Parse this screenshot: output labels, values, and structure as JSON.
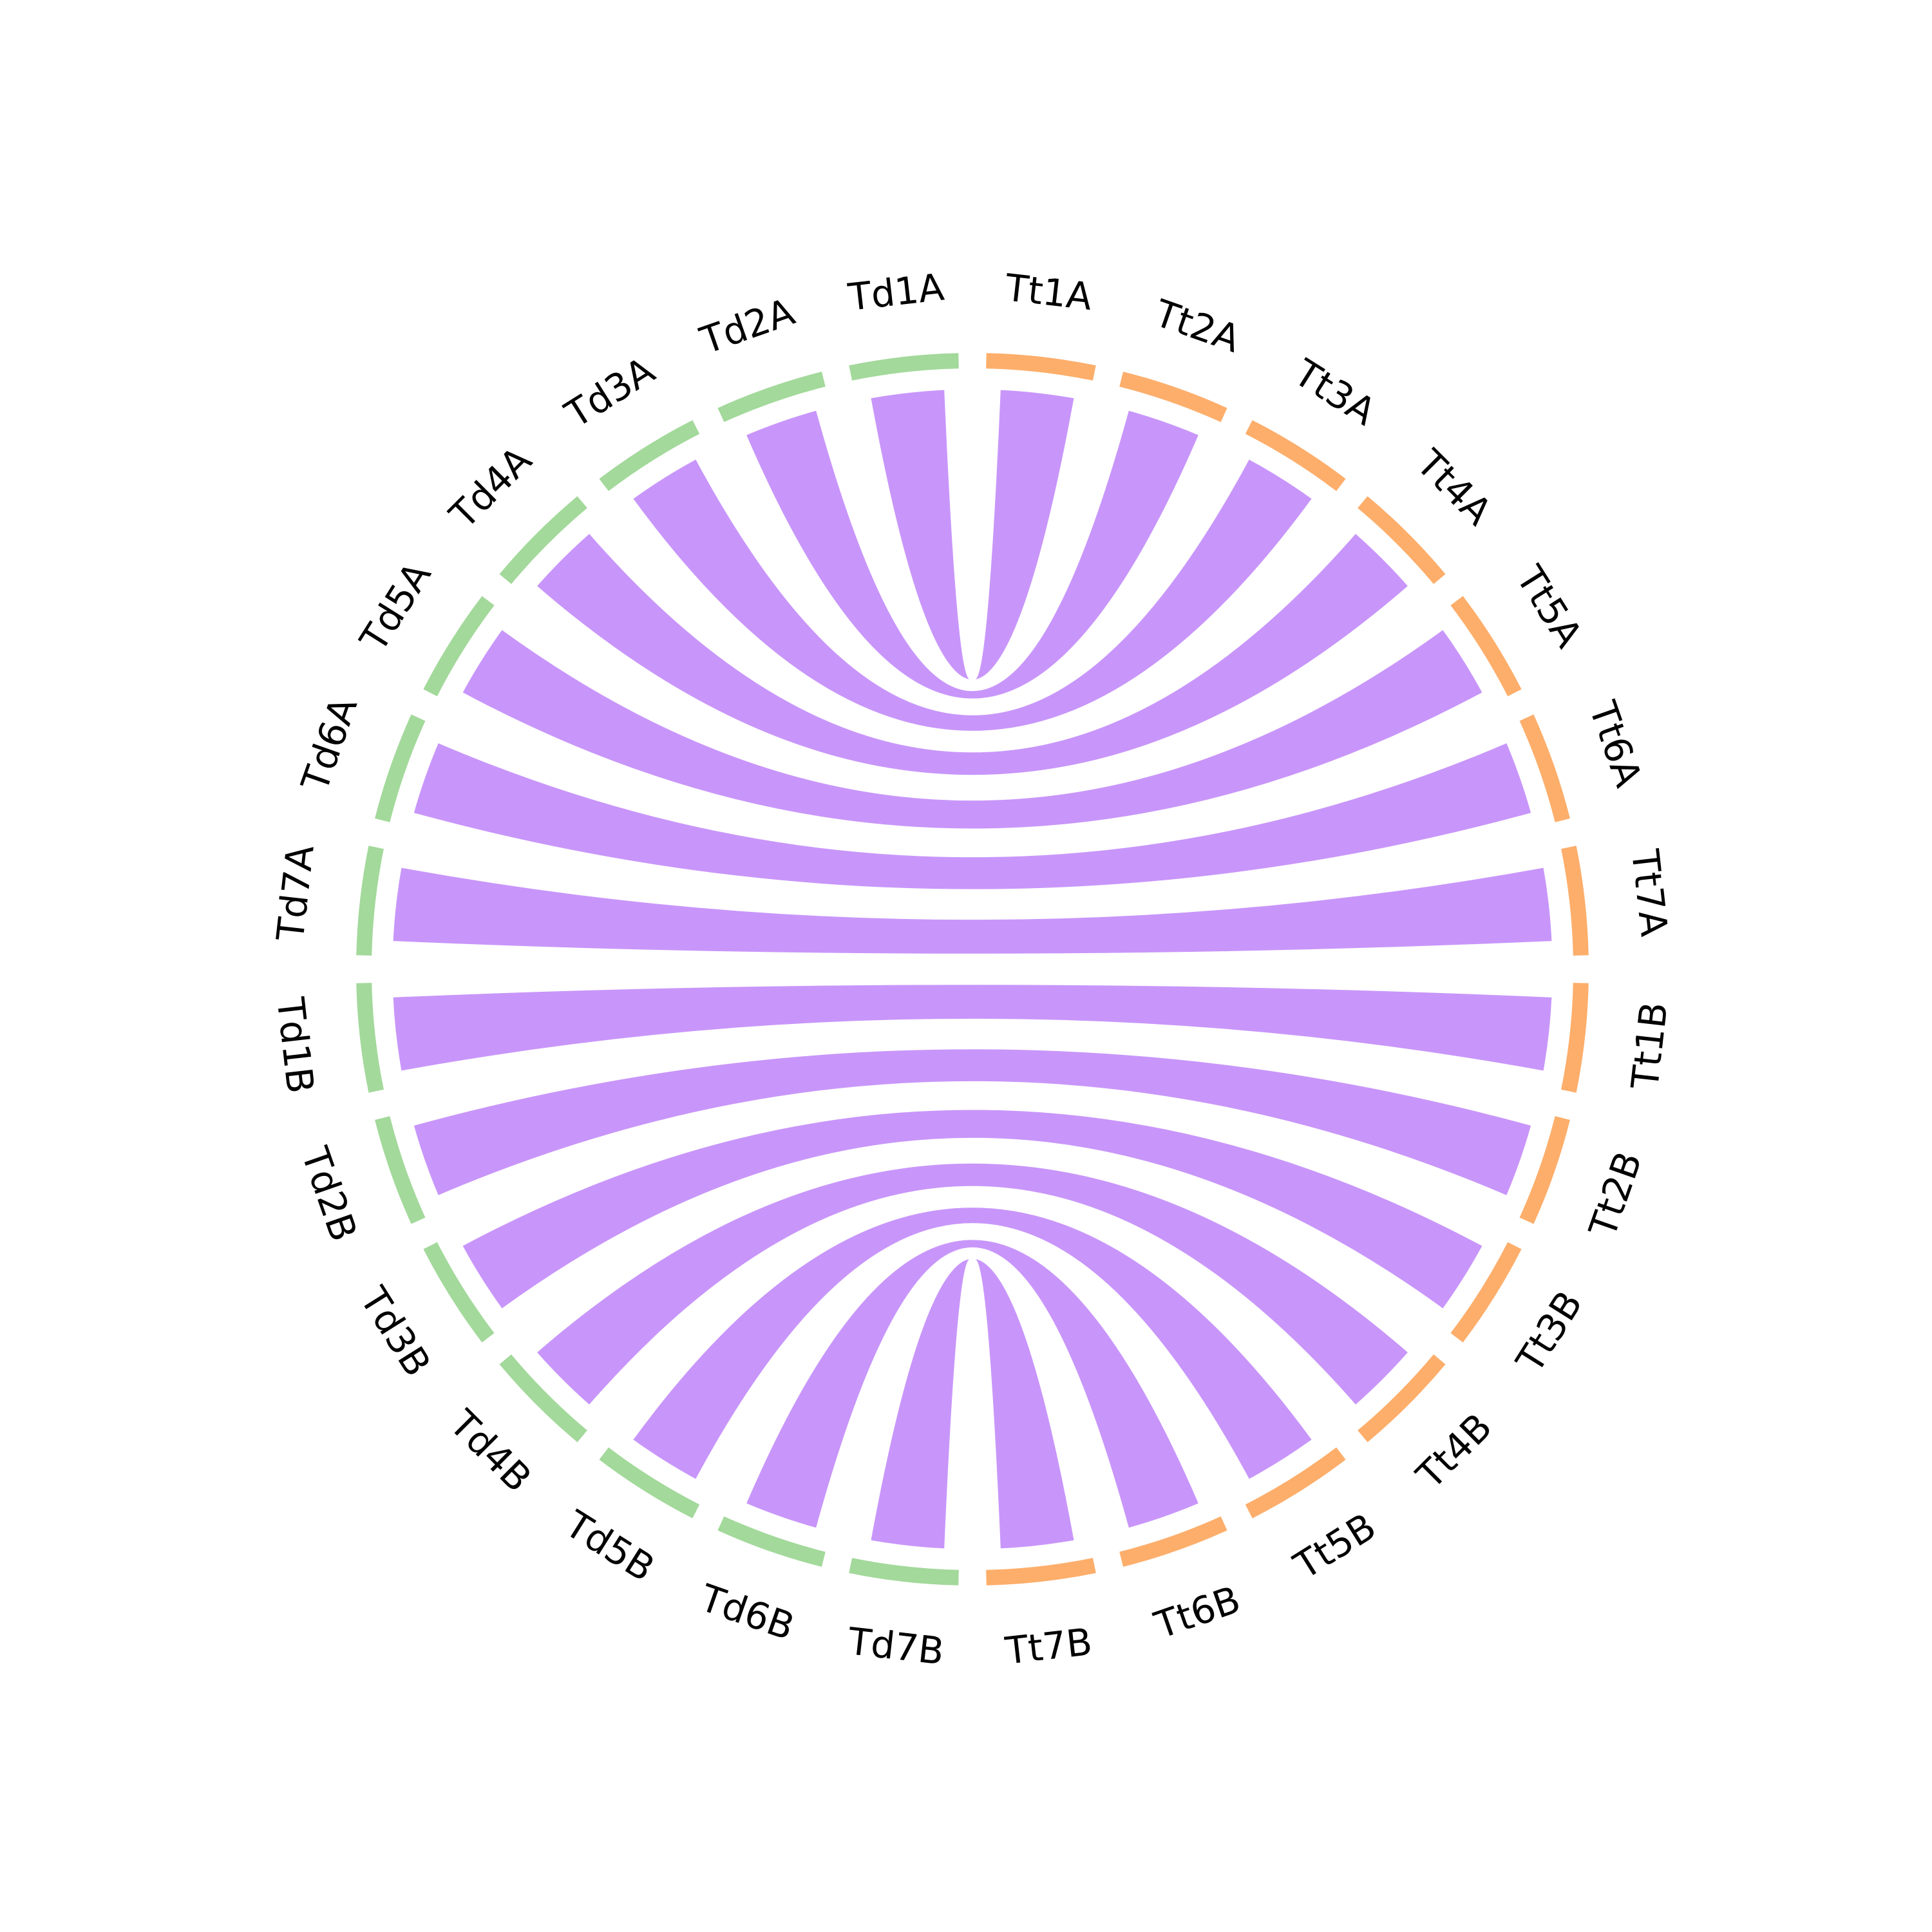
{
  "colors": {
    "background": "#ffffff",
    "td_group": "#a3d99b",
    "tt_group": "#fdae6b",
    "link": "#c896fa",
    "label": "#000000"
  },
  "chart_data": {
    "type": "chord",
    "title": "",
    "groups": [
      {
        "name": "Td",
        "color": "#a3d99b",
        "chromosomes": [
          "Td1A",
          "Td2A",
          "Td3A",
          "Td4A",
          "Td5A",
          "Td6A",
          "Td7A",
          "Td1B",
          "Td2B",
          "Td3B",
          "Td4B",
          "Td5B",
          "Td6B",
          "Td7B"
        ]
      },
      {
        "name": "Tt",
        "color": "#fdae6b",
        "chromosomes": [
          "Tt1A",
          "Tt2A",
          "Tt3A",
          "Tt4A",
          "Tt5A",
          "Tt6A",
          "Tt7A",
          "Tt1B",
          "Tt2B",
          "Tt3B",
          "Tt4B",
          "Tt5B",
          "Tt6B",
          "Tt7B"
        ]
      }
    ],
    "links": [
      {
        "from": "Td1A",
        "to": "Tt1A"
      },
      {
        "from": "Td2A",
        "to": "Tt2A"
      },
      {
        "from": "Td3A",
        "to": "Tt3A"
      },
      {
        "from": "Td4A",
        "to": "Tt4A"
      },
      {
        "from": "Td5A",
        "to": "Tt5A"
      },
      {
        "from": "Td6A",
        "to": "Tt6A"
      },
      {
        "from": "Td7A",
        "to": "Tt7A"
      },
      {
        "from": "Td1B",
        "to": "Tt1B"
      },
      {
        "from": "Td2B",
        "to": "Tt2B"
      },
      {
        "from": "Td3B",
        "to": "Tt3B"
      },
      {
        "from": "Td4B",
        "to": "Tt4B"
      },
      {
        "from": "Td5B",
        "to": "Tt5B"
      },
      {
        "from": "Td6B",
        "to": "Tt6B"
      },
      {
        "from": "Td7B",
        "to": "Tt7B"
      }
    ]
  }
}
